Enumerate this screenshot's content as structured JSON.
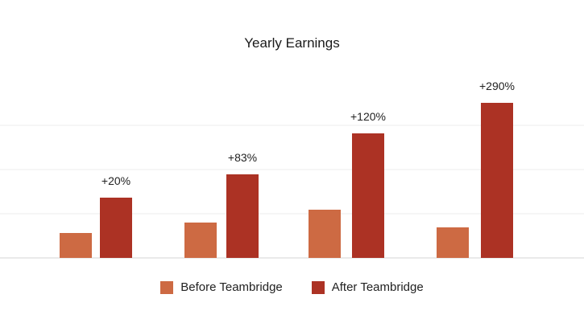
{
  "chart_data": {
    "type": "bar",
    "title": "Yearly Earnings",
    "categories": [
      "",
      "",
      "",
      ""
    ],
    "series": [
      {
        "name": "Before Teambridge",
        "color": "#cd6a43",
        "values": [
          31,
          44,
          60,
          38
        ]
      },
      {
        "name": "After Teambridge",
        "color": "#ac3224",
        "values": [
          75,
          104,
          155,
          193
        ]
      }
    ],
    "annotations": [
      "+20%",
      "+83%",
      "+120%",
      "+290%"
    ],
    "ylim": [
      0,
      220
    ],
    "grid": true,
    "legend_position": "bottom"
  }
}
